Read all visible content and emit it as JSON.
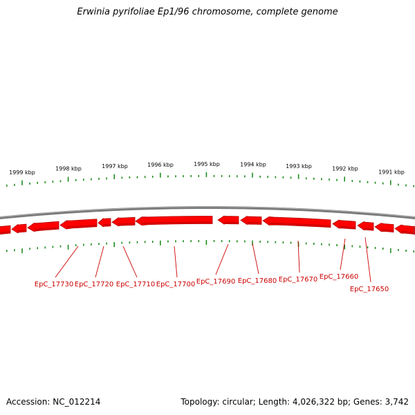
{
  "title": "Erwinia pyrifoliae Ep1/96 chromosome, complete genome",
  "footer": {
    "accession": "Accession: NC_012214",
    "summary": "Topology: circular; Length: 4,026,322 bp; Genes: 3,742"
  },
  "colors": {
    "gene": "#ff0000",
    "gene_shadow": "#b00000",
    "tick": "#1e8c1e",
    "backbone": "#7a7a7a",
    "gene_label": "#cc0000"
  },
  "icons": [
    "arrow-left-icon"
  ],
  "ruler": {
    "labels": [
      "1999 kbp",
      "1998 kbp",
      "1997 kbp",
      "1996 kbp",
      "1995 kbp",
      "1994 kbp",
      "1993 kbp",
      "1992 kbp",
      "1991 kbp"
    ]
  },
  "genes": {
    "strand": "minus",
    "labels": [
      "EpC_17730",
      "EpC_17720",
      "EpC_17710",
      "EpC_17700",
      "EpC_17690",
      "EpC_17680",
      "EpC_17670",
      "EpC_17660",
      "EpC_17650"
    ]
  }
}
